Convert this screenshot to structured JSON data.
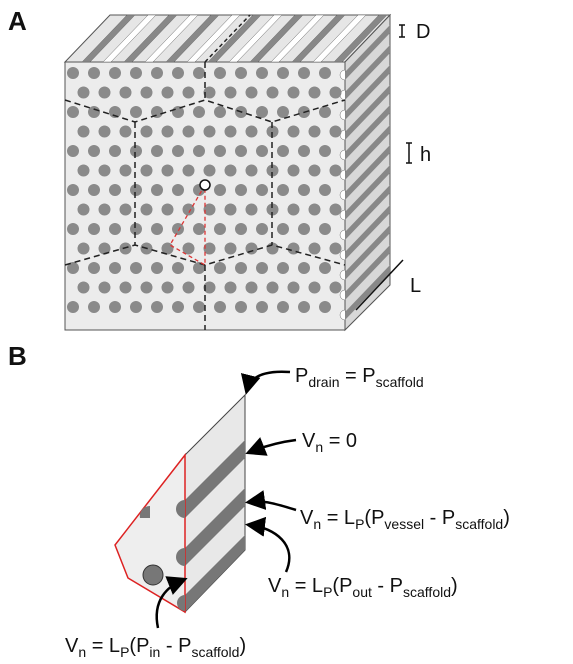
{
  "panel_a": {
    "label": "A",
    "dimension_labels": [
      "D",
      "h",
      "L"
    ]
  },
  "panel_b": {
    "label": "B",
    "equations": [
      [
        {
          "text": "P"
        },
        {
          "sub": "drain"
        },
        {
          "text": " = P"
        },
        {
          "sub": "scaffold"
        }
      ],
      [
        {
          "text": "V"
        },
        {
          "sub": "n"
        },
        {
          "text": " = 0"
        }
      ],
      [
        {
          "text": "V"
        },
        {
          "sub": "n"
        },
        {
          "text": " = L"
        },
        {
          "sub": "P"
        },
        {
          "text": "(P"
        },
        {
          "sub": "vessel"
        },
        {
          "text": " - P"
        },
        {
          "sub": "scaffold"
        },
        {
          "text": ")"
        }
      ],
      [
        {
          "text": "V"
        },
        {
          "sub": "n"
        },
        {
          "text": " = L"
        },
        {
          "sub": "P"
        },
        {
          "text": "(P"
        },
        {
          "sub": "out"
        },
        {
          "text": " - P"
        },
        {
          "sub": "scaffold"
        },
        {
          "text": ")"
        }
      ],
      [
        {
          "text": "V"
        },
        {
          "sub": "n"
        },
        {
          "text": " = L"
        },
        {
          "sub": "P"
        },
        {
          "text": "(P"
        },
        {
          "sub": "in"
        },
        {
          "text": " - P"
        },
        {
          "sub": "scaffold"
        },
        {
          "text": ")"
        }
      ]
    ]
  }
}
